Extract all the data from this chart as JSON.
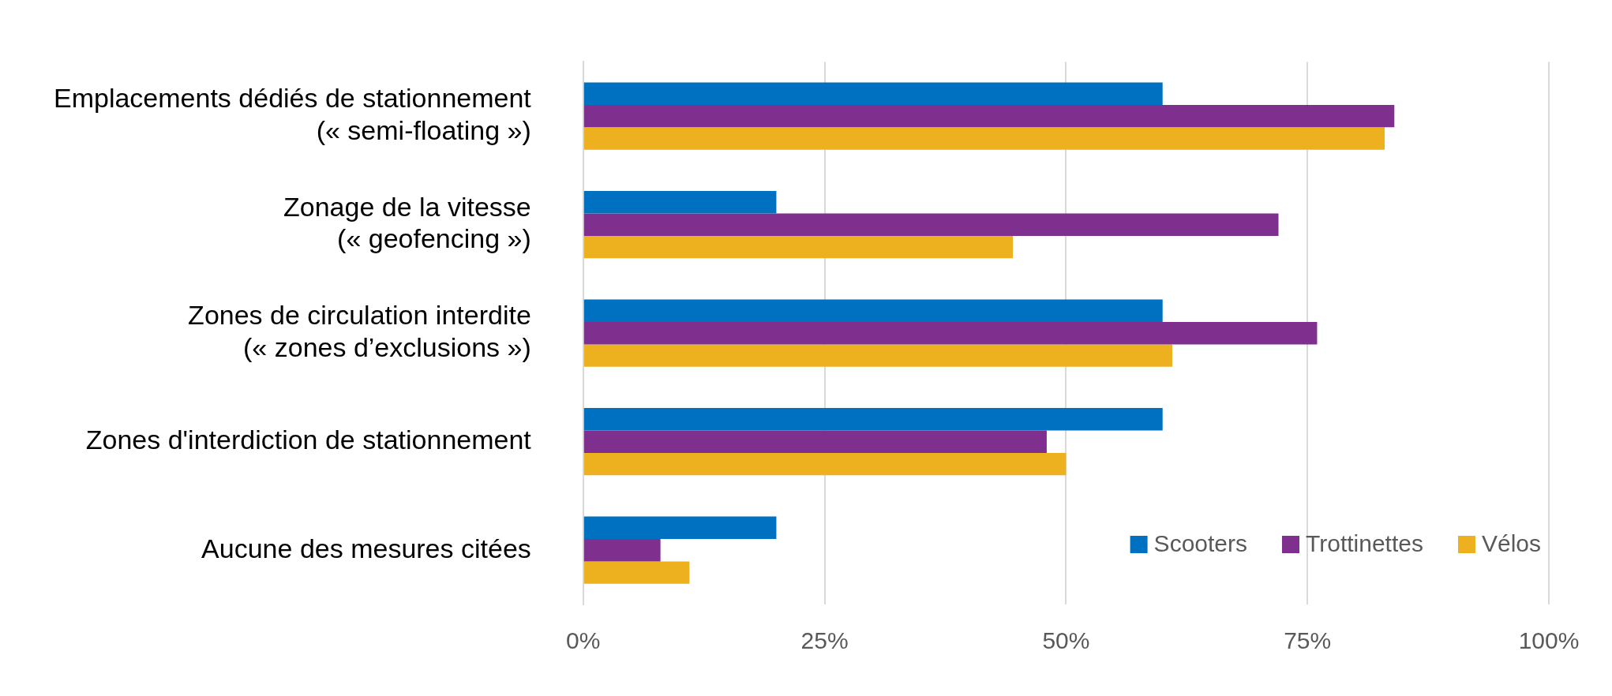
{
  "chart_data": {
    "type": "bar",
    "orientation": "horizontal",
    "categories": [
      "Emplacements dédiés de stationnement\n(« semi-floating »)",
      "Zonage de la vitesse\n(« geofencing »)",
      "Zones de circulation interdite\n(« zones d’exclusions »)",
      "Zones d'interdiction de stationnement",
      "Aucune des mesures citées"
    ],
    "series": [
      {
        "name": "Scooters",
        "color": "#0070c0",
        "values": [
          60,
          20,
          60,
          60,
          20
        ]
      },
      {
        "name": "Trottinettes",
        "color": "#7f2f8e",
        "values": [
          84,
          72,
          76,
          48,
          8
        ]
      },
      {
        "name": "Vélos",
        "color": "#edb120",
        "values": [
          83,
          44.5,
          61,
          50,
          11
        ]
      }
    ],
    "xlim": [
      0,
      100
    ],
    "xticks": [
      {
        "value": 0,
        "label": "0%"
      },
      {
        "value": 25,
        "label": "25%"
      },
      {
        "value": 50,
        "label": "50%"
      },
      {
        "value": 75,
        "label": "75%"
      },
      {
        "value": 100,
        "label": "100%"
      }
    ],
    "grid": "x",
    "legend": "bottom right"
  }
}
